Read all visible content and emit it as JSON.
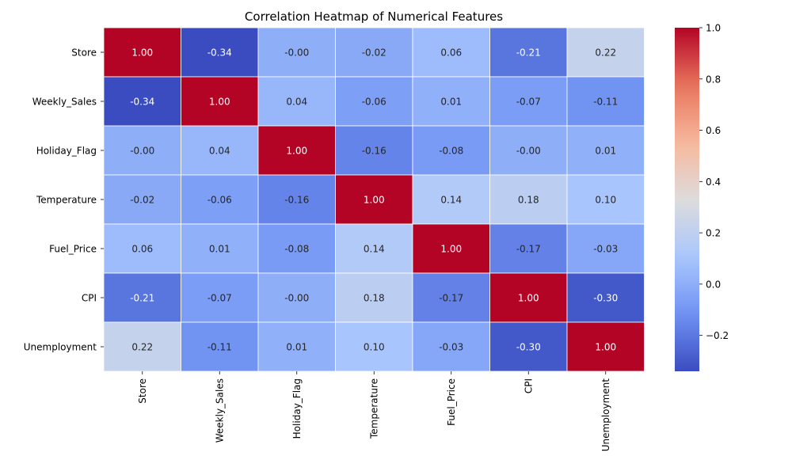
{
  "chart_data": {
    "type": "heatmap",
    "title": "Correlation Heatmap of Numerical Features",
    "xlabel": "",
    "ylabel": "",
    "rows": [
      "Store",
      "Weekly_Sales",
      "Holiday_Flag",
      "Temperature",
      "Fuel_Price",
      "CPI",
      "Unemployment"
    ],
    "columns": [
      "Store",
      "Weekly_Sales",
      "Holiday_Flag",
      "Temperature",
      "Fuel_Price",
      "CPI",
      "Unemployment"
    ],
    "values": [
      [
        1.0,
        -0.34,
        -0.0,
        -0.02,
        0.06,
        -0.21,
        0.22
      ],
      [
        -0.34,
        1.0,
        0.04,
        -0.06,
        0.01,
        -0.07,
        -0.11
      ],
      [
        -0.0,
        0.04,
        1.0,
        -0.16,
        -0.08,
        -0.0,
        0.01
      ],
      [
        -0.02,
        -0.06,
        -0.16,
        1.0,
        0.14,
        0.18,
        0.1
      ],
      [
        0.06,
        0.01,
        -0.08,
        0.14,
        1.0,
        -0.17,
        -0.03
      ],
      [
        -0.21,
        -0.07,
        -0.0,
        0.18,
        -0.17,
        1.0,
        -0.3
      ],
      [
        0.22,
        -0.11,
        0.01,
        0.1,
        -0.03,
        -0.3,
        1.0
      ]
    ],
    "cell_labels": [
      [
        "1.00",
        "-0.34",
        "-0.00",
        "-0.02",
        "0.06",
        "-0.21",
        "0.22"
      ],
      [
        "-0.34",
        "1.00",
        "0.04",
        "-0.06",
        "0.01",
        "-0.07",
        "-0.11"
      ],
      [
        "-0.00",
        "0.04",
        "1.00",
        "-0.16",
        "-0.08",
        "-0.00",
        "0.01"
      ],
      [
        "-0.02",
        "-0.06",
        "-0.16",
        "1.00",
        "0.14",
        "0.18",
        "0.10"
      ],
      [
        "0.06",
        "0.01",
        "-0.08",
        "0.14",
        "1.00",
        "-0.17",
        "-0.03"
      ],
      [
        "-0.21",
        "-0.07",
        "-0.00",
        "0.18",
        "-0.17",
        "1.00",
        "-0.30"
      ],
      [
        "0.22",
        "-0.11",
        "0.01",
        "0.10",
        "-0.03",
        "-0.30",
        "1.00"
      ]
    ],
    "colormap": "coolwarm",
    "colormap_stops": [
      "#3b4cc0",
      "#6f92f3",
      "#aac7fd",
      "#dddcdc",
      "#f7b89c",
      "#e7745b",
      "#b40426"
    ],
    "vmin": -0.34,
    "vmax": 1.0,
    "colorbar": {
      "ticks": [
        -0.2,
        0.0,
        0.2,
        0.4,
        0.6,
        0.8,
        1.0
      ],
      "tick_labels": [
        "−0.2",
        "0.0",
        "0.2",
        "0.4",
        "0.6",
        "0.8",
        "1.0"
      ],
      "placement": "right"
    },
    "cell_border_color": "#ffffff",
    "grid": false,
    "legend": "none"
  }
}
